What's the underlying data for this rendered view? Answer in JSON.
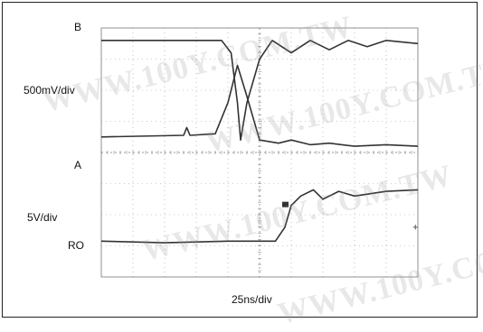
{
  "labels": {
    "channel_b": "B",
    "channel_a": "A",
    "channel_ro": "RO",
    "volts_top": "500mV/div",
    "volts_bottom": "5V/div",
    "time_div": "25ns/div"
  },
  "watermark": "WWW.100Y.COM.TW",
  "colors": {
    "trace": "#333333",
    "grid": "#9a9a9a",
    "frame": "#222222"
  },
  "chart_data": {
    "type": "line",
    "title": "",
    "xlabel": "25ns/div",
    "grid": true,
    "divisions": {
      "x": 10,
      "y": 8
    },
    "series": [
      {
        "name": "B",
        "x": [
          0,
          3.8,
          4.1,
          4.3,
          4.4,
          4.6,
          5.0,
          5.4,
          6.0,
          6.6,
          7.2,
          7.8,
          8.4,
          9.0,
          10
        ],
        "y": [
          7.6,
          7.6,
          7.2,
          5.6,
          4.4,
          5.6,
          7.0,
          7.6,
          7.2,
          7.6,
          7.3,
          7.6,
          7.4,
          7.6,
          7.5
        ]
      },
      {
        "name": "A",
        "x": [
          0,
          2.6,
          2.7,
          2.8,
          3.6,
          4.0,
          4.3,
          4.6,
          5.0,
          5.6,
          6.0,
          6.6,
          7.2,
          8.0,
          9.0,
          10
        ],
        "y": [
          4.5,
          4.55,
          4.8,
          4.55,
          4.6,
          5.6,
          6.8,
          5.8,
          4.4,
          4.3,
          4.4,
          4.25,
          4.3,
          4.2,
          4.25,
          4.2
        ]
      },
      {
        "name": "RO",
        "x": [
          0,
          2.0,
          4.0,
          5.5,
          5.8,
          6.0,
          6.3,
          6.7,
          7.0,
          7.5,
          8.0,
          9.0,
          10
        ],
        "y": [
          1.15,
          1.1,
          1.15,
          1.15,
          1.6,
          2.3,
          2.6,
          2.8,
          2.5,
          2.75,
          2.6,
          2.75,
          2.8
        ]
      }
    ]
  }
}
